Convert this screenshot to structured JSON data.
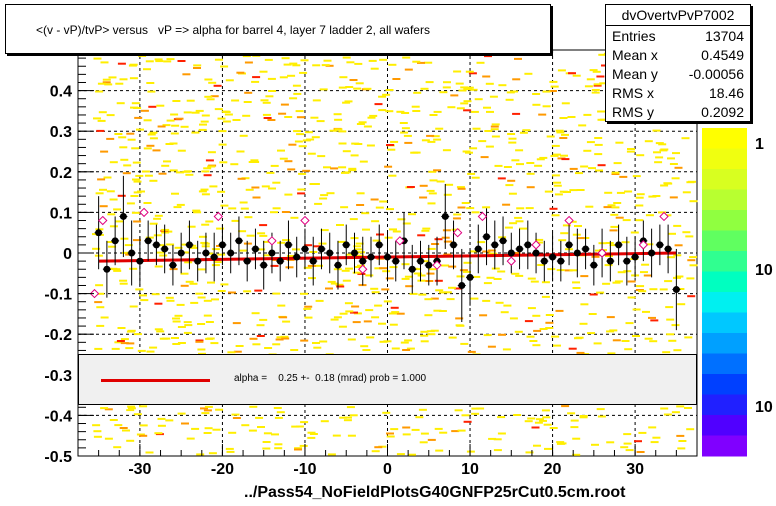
{
  "title": "<(v - vP)/tvP> versus   vP => alpha for barrel 4, layer 7 ladder 2, all wafers",
  "footer": "../Pass54_NoFieldPlotsG40GNFP25rCut0.5cm.root",
  "stats": {
    "name": "dvOvertvPvP7002",
    "rows": [
      {
        "label": "Entries",
        "value": "13704"
      },
      {
        "label": "Mean x",
        "value": "0.4549"
      },
      {
        "label": "Mean y",
        "value": "-0.00056"
      },
      {
        "label": "RMS x",
        "value": "18.46"
      },
      {
        "label": "RMS y",
        "value": "0.2092"
      }
    ]
  },
  "legend": {
    "text": "alpha =    0.25 +-  0.18 (mrad) prob = 1.000",
    "line_color": "#e00000"
  },
  "colorbar": {
    "labels": [
      "1",
      "10",
      "10"
    ]
  },
  "chart_data": {
    "type": "scatter",
    "xlim": [
      -37.5,
      37.5
    ],
    "ylim": [
      -0.5,
      0.5
    ],
    "x_ticks": [
      -30,
      -20,
      -10,
      0,
      10,
      20,
      30
    ],
    "x_tick_labels": [
      "-30",
      "-20",
      "-10",
      "0",
      "10",
      "20",
      "30"
    ],
    "y_ticks": [
      0.4,
      0.3,
      0.2,
      0.1,
      0,
      -0.1,
      -0.2,
      -0.3,
      -0.4,
      -0.5
    ],
    "y_tick_labels": [
      "0.4",
      "0.3",
      "0.2",
      "0.1",
      "0",
      "-0.1",
      "-0.2",
      "-0.3",
      "-0.4",
      "-0.5"
    ],
    "grid": true,
    "fit_line": {
      "x": [
        -35,
        35
      ],
      "y": [
        -0.02,
        0.0
      ]
    },
    "series": [
      {
        "marker": "filled-circle",
        "color": "#000000",
        "x": [
          -35,
          -34,
          -33,
          -32,
          -31,
          -30,
          -29,
          -28,
          -27,
          -26,
          -25,
          -24,
          -23,
          -22,
          -21,
          -20,
          -19,
          -18,
          -17,
          -16,
          -15,
          -14,
          -13,
          -12,
          -11,
          -10,
          -9,
          -8,
          -7,
          -6,
          -5,
          -4,
          -3,
          -2,
          -1,
          0,
          1,
          2,
          3,
          4,
          5,
          6,
          7,
          8,
          9,
          10,
          11,
          12,
          13,
          14,
          15,
          16,
          17,
          18,
          19,
          20,
          21,
          22,
          23,
          24,
          25,
          26,
          27,
          28,
          29,
          30,
          31,
          32,
          33,
          34,
          35
        ],
        "y": [
          0.05,
          -0.04,
          0.03,
          0.09,
          0.0,
          -0.02,
          0.03,
          0.02,
          0.01,
          -0.03,
          0.0,
          0.02,
          -0.02,
          0.0,
          -0.01,
          0.02,
          0.0,
          0.03,
          -0.02,
          0.01,
          -0.03,
          0.0,
          -0.02,
          0.02,
          -0.01,
          0.01,
          -0.02,
          0.01,
          0.0,
          -0.03,
          0.02,
          0.0,
          -0.02,
          -0.01,
          0.02,
          -0.01,
          -0.02,
          0.03,
          -0.04,
          -0.02,
          -0.03,
          -0.02,
          0.09,
          0.02,
          -0.08,
          -0.06,
          0.01,
          0.04,
          0.02,
          0.03,
          0.0,
          0.01,
          0.02,
          0.0,
          -0.02,
          -0.01,
          -0.02,
          0.02,
          0.0,
          0.01,
          -0.03,
          0.0,
          -0.02,
          0.02,
          -0.02,
          -0.01,
          0.03,
          0.0,
          0.02,
          0.01,
          -0.09
        ],
        "err": [
          0.09,
          0.07,
          0.06,
          0.1,
          0.08,
          0.06,
          0.05,
          0.05,
          0.06,
          0.05,
          0.05,
          0.06,
          0.05,
          0.05,
          0.06,
          0.05,
          0.05,
          0.06,
          0.05,
          0.05,
          0.06,
          0.05,
          0.05,
          0.06,
          0.05,
          0.05,
          0.06,
          0.05,
          0.05,
          0.06,
          0.05,
          0.05,
          0.06,
          0.05,
          0.05,
          0.06,
          0.05,
          0.07,
          0.06,
          0.05,
          0.05,
          0.06,
          0.08,
          0.06,
          0.09,
          0.07,
          0.06,
          0.07,
          0.06,
          0.06,
          0.05,
          0.05,
          0.06,
          0.05,
          0.05,
          0.06,
          0.05,
          0.05,
          0.06,
          0.05,
          0.05,
          0.06,
          0.05,
          0.05,
          0.06,
          0.05,
          0.05,
          0.06,
          0.05,
          0.06,
          0.1
        ]
      },
      {
        "marker": "open-diamond",
        "color": "#e00080",
        "x": [
          -35.5,
          -34.5,
          -29.5,
          -20.5,
          -14,
          -10,
          -3,
          1.5,
          6,
          8.5,
          11.5,
          15,
          18,
          22,
          26,
          31,
          33.5
        ],
        "y": [
          -0.1,
          0.08,
          0.1,
          0.09,
          0.03,
          0.08,
          -0.04,
          0.03,
          -0.03,
          0.05,
          0.09,
          -0.02,
          0.02,
          0.08,
          0.0,
          0.02,
          0.09
        ]
      }
    ]
  }
}
